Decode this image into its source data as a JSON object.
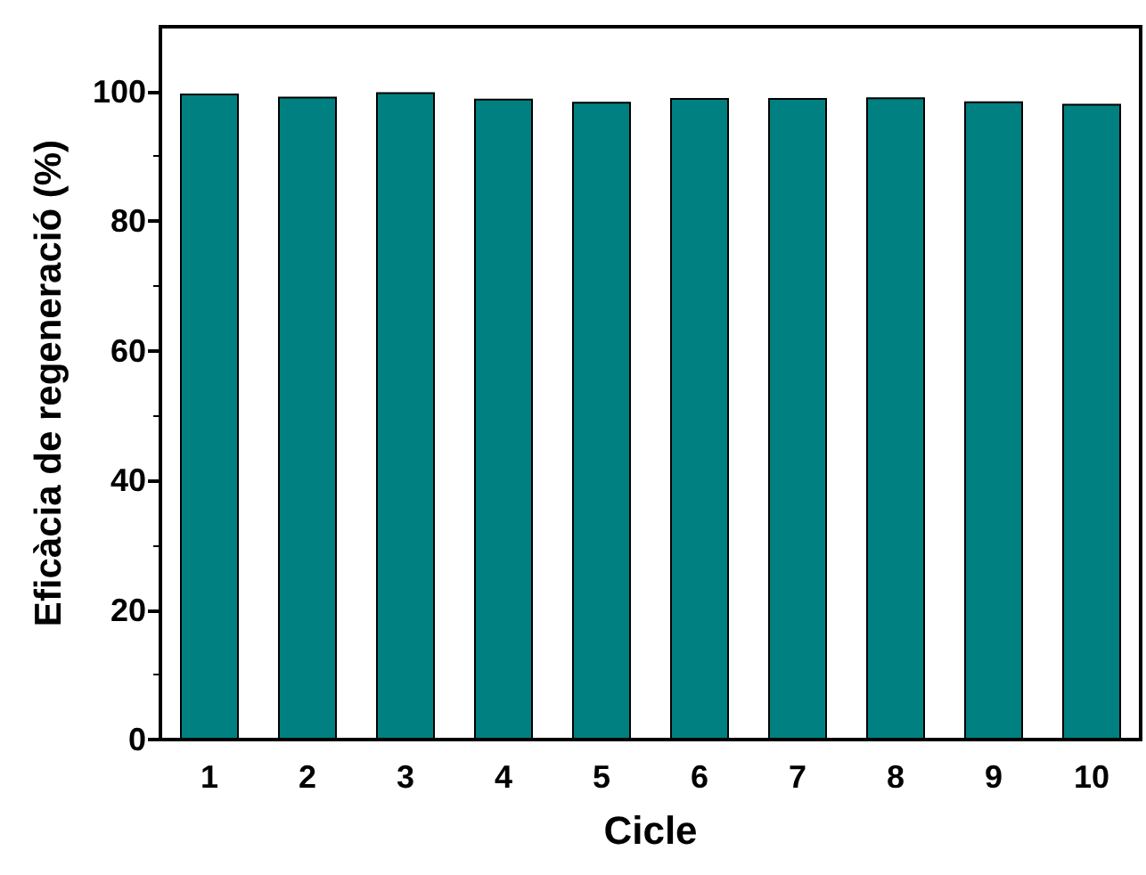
{
  "chart_data": {
    "type": "bar",
    "xlabel": "Cicle",
    "ylabel": "Eficàcia de regeneració (%)",
    "categories": [
      "1",
      "2",
      "3",
      "4",
      "5",
      "6",
      "7",
      "8",
      "9",
      "10"
    ],
    "values": [
      99.7,
      99.2,
      99.9,
      98.9,
      98.4,
      99.0,
      99.0,
      99.1,
      98.5,
      98.1
    ],
    "color": "#008080",
    "ylim": [
      0,
      110
    ],
    "yticks": [
      0,
      20,
      40,
      60,
      80,
      100
    ],
    "grid": false
  }
}
